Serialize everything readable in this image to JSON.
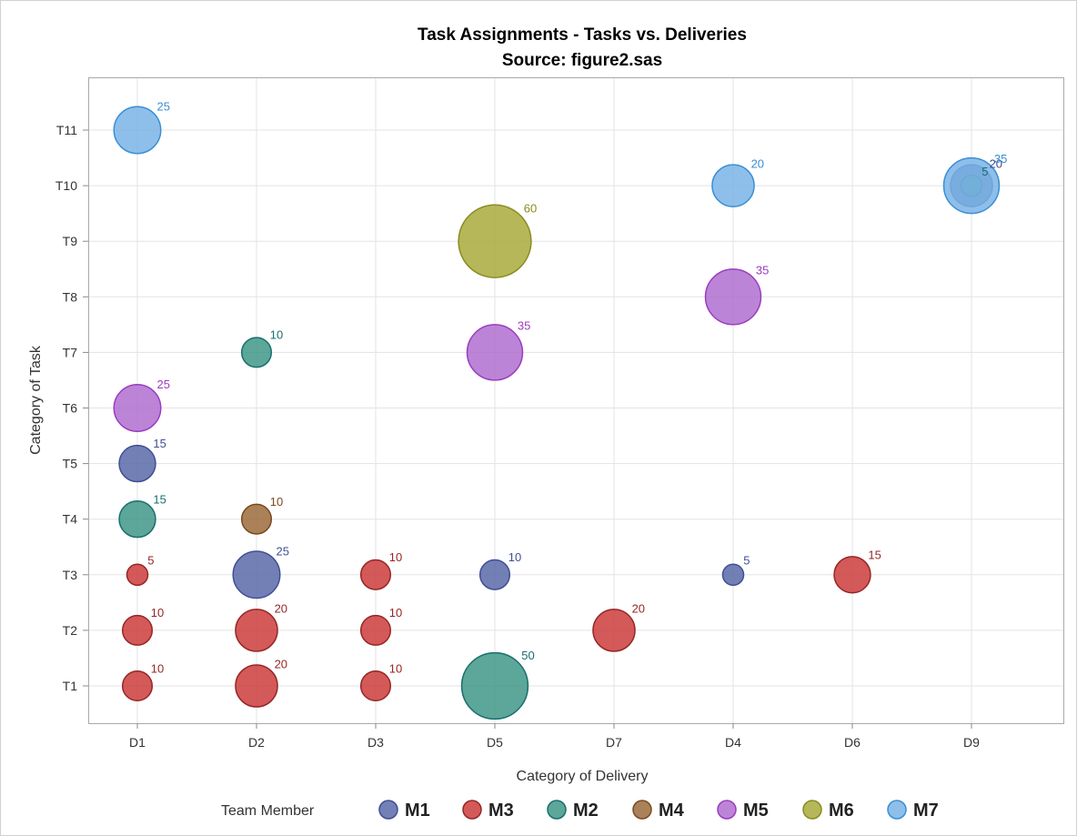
{
  "chart_data": {
    "type": "scatter",
    "title": "Task Assignments - Tasks vs. Deliveries",
    "subtitle": "Source: figure2.sas",
    "xlabel": "Category of Delivery",
    "ylabel": "Category of Task",
    "x_categories": [
      "D1",
      "D2",
      "D3",
      "D5",
      "D7",
      "D4",
      "D6",
      "D9"
    ],
    "y_categories": [
      "T1",
      "T2",
      "T3",
      "T4",
      "T5",
      "T6",
      "T7",
      "T8",
      "T9",
      "T10",
      "T11"
    ],
    "grid": true,
    "legend": {
      "title": "Team Member",
      "position": "bottom"
    },
    "series": [
      {
        "name": "M1",
        "color": "#5b6aa8",
        "label_color": "#3f4f95",
        "points": [
          {
            "x": "D5",
            "y": "T3",
            "size": 10
          },
          {
            "x": "D4",
            "y": "T3",
            "size": 5
          },
          {
            "x": "D1",
            "y": "T5",
            "size": 15
          },
          {
            "x": "D2",
            "y": "T3",
            "size": 25
          },
          {
            "x": "D9",
            "y": "T10",
            "size": 20
          }
        ]
      },
      {
        "name": "M3",
        "color": "#cc3c3c",
        "label_color": "#962626",
        "points": [
          {
            "x": "D1",
            "y": "T1",
            "size": 10
          },
          {
            "x": "D2",
            "y": "T1",
            "size": 20
          },
          {
            "x": "D3",
            "y": "T1",
            "size": 10
          },
          {
            "x": "D1",
            "y": "T2",
            "size": 10
          },
          {
            "x": "D2",
            "y": "T2",
            "size": 20
          },
          {
            "x": "D3",
            "y": "T2",
            "size": 10
          },
          {
            "x": "D7",
            "y": "T2",
            "size": 20
          },
          {
            "x": "D1",
            "y": "T3",
            "size": 5
          },
          {
            "x": "D3",
            "y": "T3",
            "size": 10
          },
          {
            "x": "D6",
            "y": "T3",
            "size": 15
          }
        ]
      },
      {
        "name": "M2",
        "color": "#3f9688",
        "label_color": "#1a6e6e",
        "points": [
          {
            "x": "D5",
            "y": "T1",
            "size": 50
          },
          {
            "x": "D1",
            "y": "T4",
            "size": 15
          },
          {
            "x": "D2",
            "y": "T7",
            "size": 10
          },
          {
            "x": "D9",
            "y": "T10",
            "size": 5
          }
        ]
      },
      {
        "name": "M4",
        "color": "#9c6b3c",
        "label_color": "#7a4a1e",
        "points": [
          {
            "x": "D2",
            "y": "T4",
            "size": 10
          }
        ]
      },
      {
        "name": "M5",
        "color": "#b06fd0",
        "label_color": "#9c3cc0",
        "points": [
          {
            "x": "D1",
            "y": "T6",
            "size": 25
          },
          {
            "x": "D5",
            "y": "T7",
            "size": 35
          },
          {
            "x": "D4",
            "y": "T8",
            "size": 35
          }
        ]
      },
      {
        "name": "M6",
        "color": "#a8aa3c",
        "label_color": "#8a8c1e",
        "points": [
          {
            "x": "D5",
            "y": "T9",
            "size": 60
          }
        ]
      },
      {
        "name": "M7",
        "color": "#7ab4e6",
        "label_color": "#3a8ed4",
        "points": [
          {
            "x": "D1",
            "y": "T11",
            "size": 25
          },
          {
            "x": "D4",
            "y": "T10",
            "size": 20
          },
          {
            "x": "D9",
            "y": "T10",
            "size": 35
          }
        ]
      }
    ]
  }
}
